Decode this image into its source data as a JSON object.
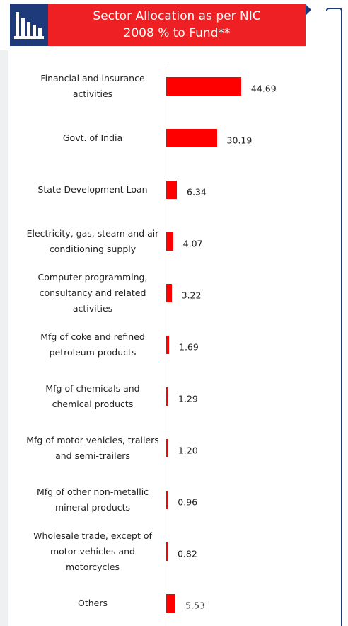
{
  "chart_data": {
    "type": "bar",
    "orientation": "horizontal",
    "title": "Sector Allocation as per NIC 2008 % to Fund**",
    "categories": [
      "Financial and insurance activities",
      "Govt. of India",
      "State Development Loan",
      "Electricity, gas, steam and air conditioning supply",
      "Computer programming, consultancy and related activities",
      "Mfg of coke and refined petroleum products",
      "Mfg of chemicals and chemical products",
      "Mfg of motor vehicles, trailers and semi-trailers",
      "Mfg of other non-metallic mineral products",
      "Wholesale trade, except of motor vehicles and motorcycles",
      "Others"
    ],
    "values": [
      44.69,
      30.19,
      6.34,
      4.07,
      3.22,
      1.69,
      1.29,
      1.2,
      0.96,
      0.82,
      5.53
    ],
    "value_labels": [
      "44.69",
      "30.19",
      "6.34",
      "4.07",
      "3.22",
      "1.69",
      "1.29",
      "1.20",
      "0.96",
      "0.82",
      "5.53"
    ],
    "color": "#ff0000"
  }
}
